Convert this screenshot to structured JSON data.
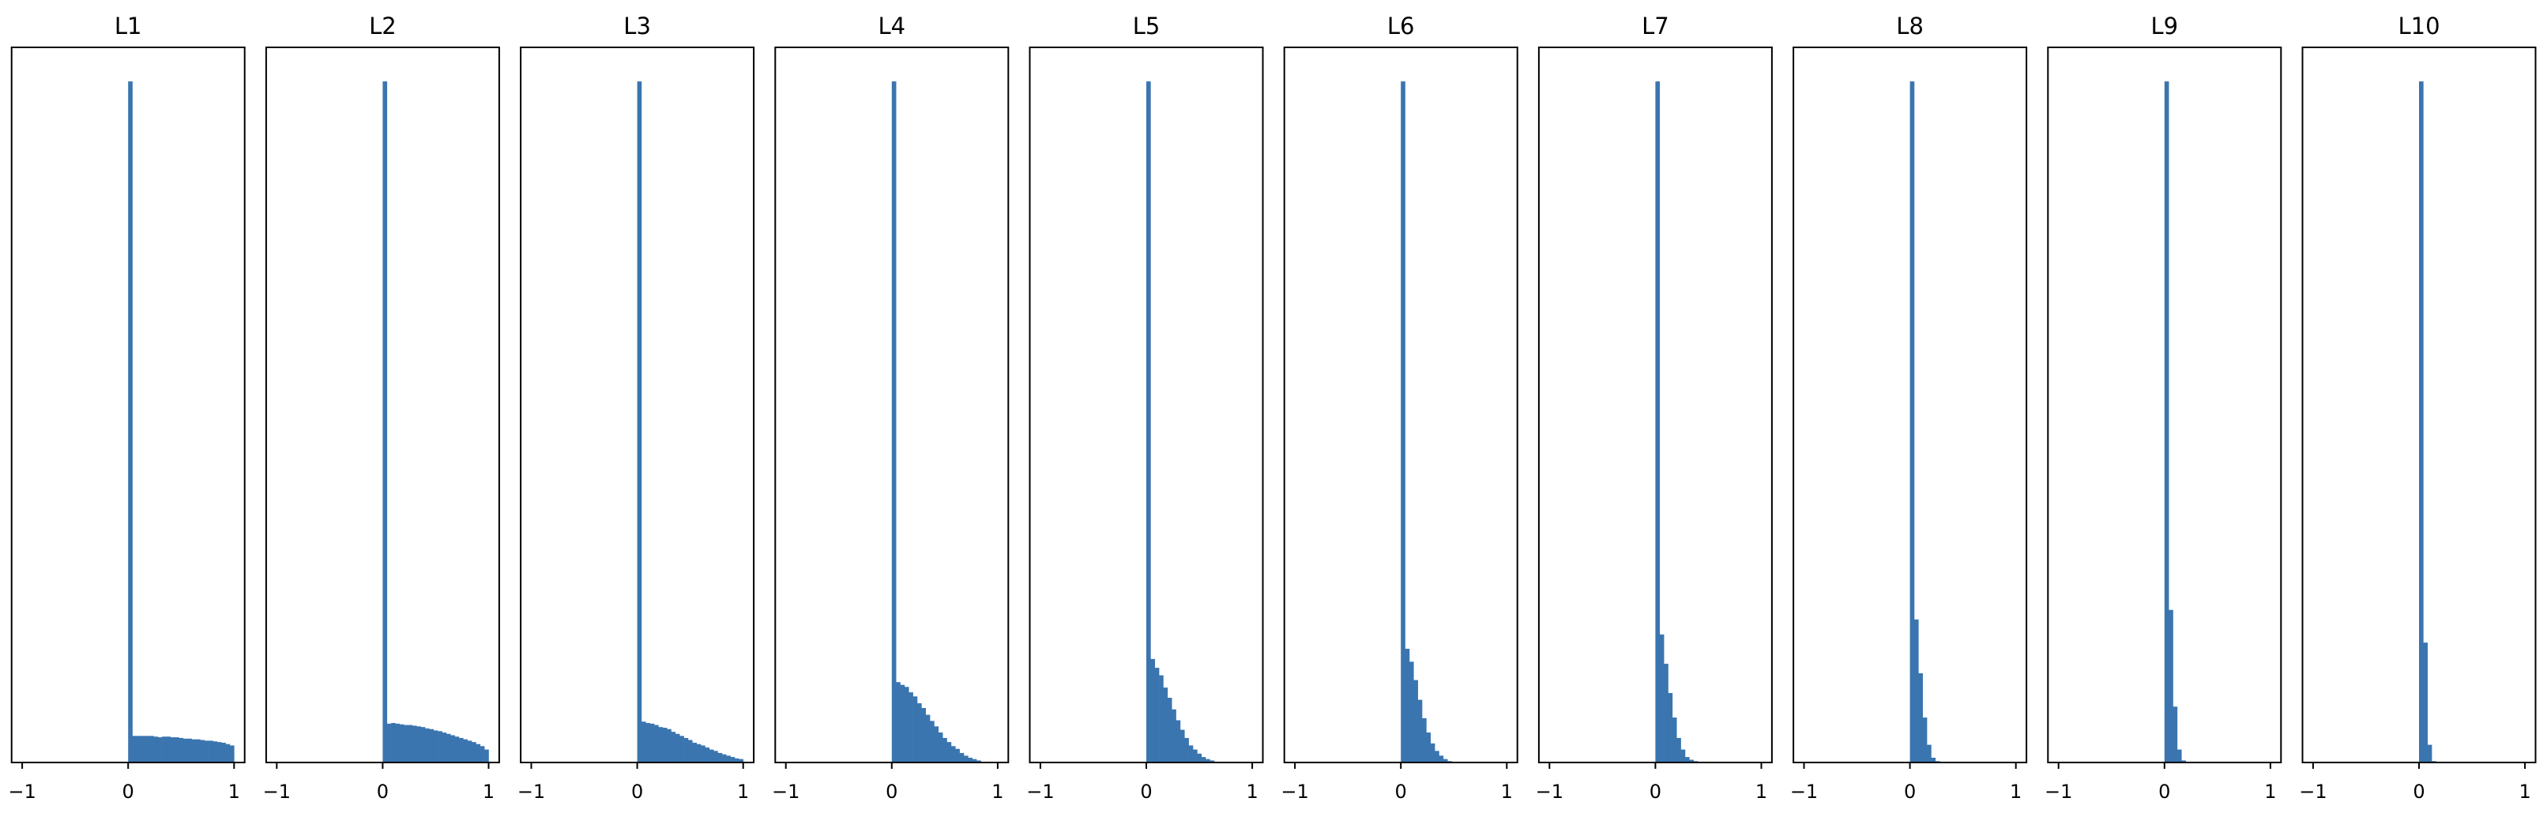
{
  "chart_data": [
    {
      "type": "bar",
      "title": "L1",
      "bin_width": 0.04,
      "bin_start": 0,
      "spike": 1.0,
      "ylim": [
        0,
        1.05
      ],
      "xlim": [
        -1.1,
        1.1
      ],
      "xticks": [
        -1,
        0,
        1
      ],
      "xtick_labels": [
        "−1",
        "0",
        "1"
      ],
      "yticks": [],
      "values": [
        0.039,
        0.039,
        0.039,
        0.039,
        0.039,
        0.038,
        0.037,
        0.038,
        0.038,
        0.037,
        0.037,
        0.036,
        0.035,
        0.035,
        0.034,
        0.034,
        0.033,
        0.032,
        0.032,
        0.031,
        0.03,
        0.029,
        0.027,
        0.025
      ]
    },
    {
      "type": "bar",
      "title": "L2",
      "bin_width": 0.04,
      "bin_start": 0,
      "spike": 1.0,
      "ylim": [
        0,
        1.05
      ],
      "xlim": [
        -1.1,
        1.1
      ],
      "xticks": [
        -1,
        0,
        1
      ],
      "xtick_labels": [
        "−1",
        "0",
        "1"
      ],
      "yticks": [],
      "values": [
        0.057,
        0.058,
        0.057,
        0.056,
        0.055,
        0.055,
        0.054,
        0.053,
        0.052,
        0.05,
        0.049,
        0.047,
        0.046,
        0.044,
        0.042,
        0.04,
        0.038,
        0.036,
        0.034,
        0.032,
        0.03,
        0.027,
        0.024,
        0.019
      ]
    },
    {
      "type": "bar",
      "title": "L3",
      "bin_width": 0.04,
      "bin_start": 0,
      "spike": 1.0,
      "ylim": [
        0,
        1.05
      ],
      "xlim": [
        -1.1,
        1.1
      ],
      "xticks": [
        -1,
        0,
        1
      ],
      "xtick_labels": [
        "−1",
        "0",
        "1"
      ],
      "yticks": [],
      "values": [
        0.06,
        0.058,
        0.057,
        0.055,
        0.052,
        0.051,
        0.049,
        0.045,
        0.042,
        0.039,
        0.036,
        0.033,
        0.029,
        0.027,
        0.025,
        0.022,
        0.019,
        0.017,
        0.014,
        0.012,
        0.01,
        0.008,
        0.006,
        0.005
      ]
    },
    {
      "type": "bar",
      "title": "L4",
      "bin_width": 0.04,
      "bin_start": 0,
      "spike": 1.0,
      "ylim": [
        0,
        1.05
      ],
      "xlim": [
        -1.1,
        1.1
      ],
      "xticks": [
        -1,
        0,
        1
      ],
      "xtick_labels": [
        "−1",
        "0",
        "1"
      ],
      "yticks": [],
      "values": [
        0.118,
        0.114,
        0.111,
        0.103,
        0.097,
        0.087,
        0.08,
        0.07,
        0.061,
        0.053,
        0.044,
        0.036,
        0.03,
        0.024,
        0.02,
        0.014,
        0.01,
        0.007,
        0.005,
        0.003,
        0.001,
        0.001
      ]
    },
    {
      "type": "bar",
      "title": "L5",
      "bin_width": 0.04,
      "bin_start": 0,
      "spike": 1.0,
      "ylim": [
        0,
        1.05
      ],
      "xlim": [
        -1.1,
        1.1
      ],
      "xticks": [
        -1,
        0,
        1
      ],
      "xtick_labels": [
        "−1",
        "0",
        "1"
      ],
      "yticks": [],
      "values": [
        0.152,
        0.139,
        0.128,
        0.11,
        0.095,
        0.078,
        0.062,
        0.048,
        0.036,
        0.025,
        0.019,
        0.013,
        0.008,
        0.005,
        0.003
      ]
    },
    {
      "type": "bar",
      "title": "L6",
      "bin_width": 0.04,
      "bin_start": 0,
      "spike": 1.0,
      "ylim": [
        0,
        1.05
      ],
      "xlim": [
        -1.1,
        1.1
      ],
      "xticks": [
        -1,
        0,
        1
      ],
      "xtick_labels": [
        "−1",
        "0",
        "1"
      ],
      "yticks": [],
      "values": [
        0.167,
        0.148,
        0.121,
        0.092,
        0.065,
        0.044,
        0.028,
        0.017,
        0.01,
        0.005,
        0.002,
        0.001
      ]
    },
    {
      "type": "bar",
      "title": "L7",
      "bin_width": 0.04,
      "bin_start": 0,
      "spike": 1.0,
      "ylim": [
        0,
        1.05
      ],
      "xlim": [
        -1.1,
        1.1
      ],
      "xticks": [
        -1,
        0,
        1
      ],
      "xtick_labels": [
        "−1",
        "0",
        "1"
      ],
      "yticks": [],
      "values": [
        0.188,
        0.145,
        0.102,
        0.066,
        0.036,
        0.019,
        0.008,
        0.004,
        0.002
      ]
    },
    {
      "type": "bar",
      "title": "L8",
      "bin_width": 0.04,
      "bin_start": 0,
      "spike": 1.0,
      "ylim": [
        0,
        1.05
      ],
      "xlim": [
        -1.1,
        1.1
      ],
      "xticks": [
        -1,
        0,
        1
      ],
      "xtick_labels": [
        "−1",
        "0",
        "1"
      ],
      "yticks": [],
      "values": [
        0.21,
        0.131,
        0.066,
        0.026,
        0.007,
        0.002
      ]
    },
    {
      "type": "bar",
      "title": "L9",
      "bin_width": 0.04,
      "bin_start": 0,
      "spike": 1.0,
      "ylim": [
        0,
        1.05
      ],
      "xlim": [
        -1.1,
        1.1
      ],
      "xticks": [
        -1,
        0,
        1
      ],
      "xtick_labels": [
        "−1",
        "0",
        "1"
      ],
      "yticks": [],
      "values": [
        0.224,
        0.082,
        0.019,
        0.003
      ]
    },
    {
      "type": "bar",
      "title": "L10",
      "bin_width": 0.04,
      "bin_start": 0,
      "spike": 1.0,
      "ylim": [
        0,
        1.05
      ],
      "xlim": [
        -1.1,
        1.1
      ],
      "xticks": [
        -1,
        0,
        1
      ],
      "xtick_labels": [
        "−1",
        "0",
        "1"
      ],
      "yticks": [],
      "values": [
        0.176,
        0.026,
        0.002
      ]
    }
  ],
  "colors": {
    "bar": "#3a75af",
    "frame": "#000000",
    "background": "#ffffff"
  }
}
